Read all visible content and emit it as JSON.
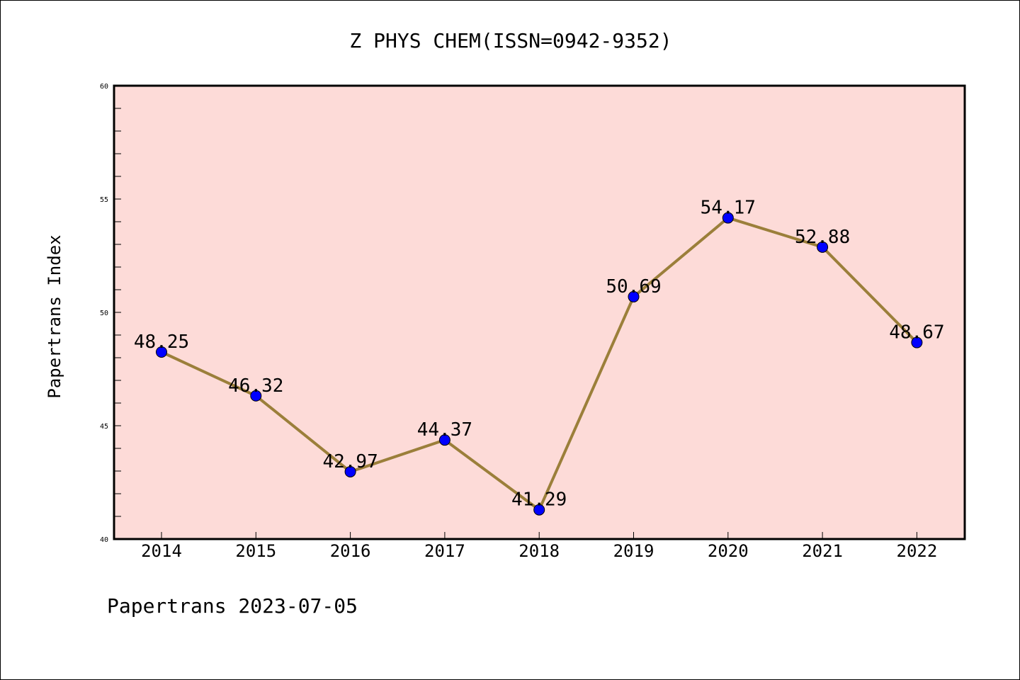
{
  "chart_data": {
    "type": "line",
    "title": "Z PHYS CHEM(ISSN=0942-9352)",
    "ylabel": "Papertrans Index",
    "xlabel": "",
    "categories": [
      "2014",
      "2015",
      "2016",
      "2017",
      "2018",
      "2019",
      "2020",
      "2021",
      "2022"
    ],
    "values": [
      48.25,
      46.32,
      42.97,
      44.37,
      41.29,
      50.69,
      54.17,
      52.88,
      48.67
    ],
    "data_labels": [
      "48.25",
      "46.32",
      "42.97",
      "44.37",
      "41.29",
      "50.69",
      "54.17",
      "52.88",
      "48.67"
    ],
    "ylim": [
      40,
      60
    ],
    "yticks": [
      40,
      45,
      50,
      55,
      60
    ],
    "ytick_labels": [
      "40",
      "45",
      "50",
      "55",
      "60"
    ],
    "grid": false,
    "colors": {
      "plot_background": "#fddbd8",
      "line": "#9b7f3a",
      "marker": "#0000ff"
    }
  },
  "footer": "Papertrans 2023-07-05"
}
